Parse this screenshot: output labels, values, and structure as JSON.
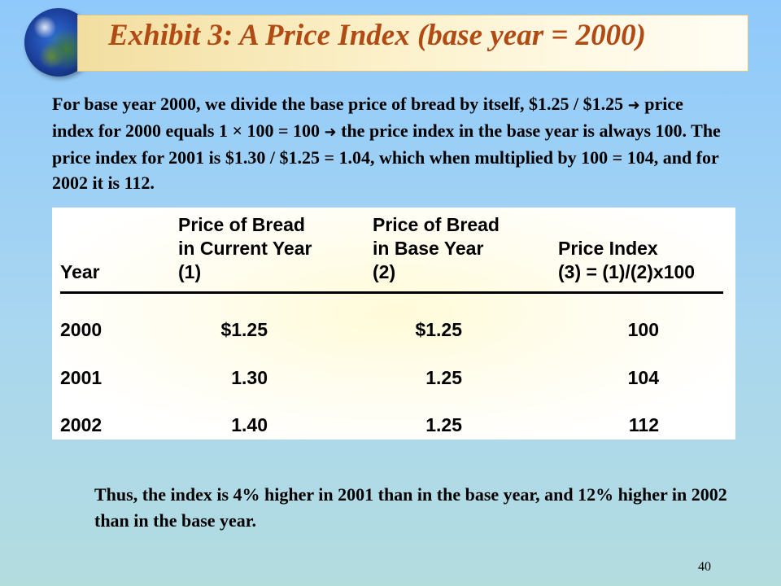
{
  "slide": {
    "title": "Exhibit 3: A Price Index (base year = 2000)",
    "intro": {
      "part1": "For base year 2000, we divide the base price of bread by itself, $1.25 / $1.25 ",
      "part2": " price index for 2000 equals 1 × 100 = 100 ",
      "part3": " the price index in the base year is always 100.  The price index for 2001 is $1.30 / $1.25 = 1.04, which when multiplied by 100 = 104, and for 2002 it is 112."
    },
    "footer": "Thus, the index is 4% higher in 2001 than in the base year, and  12% higher in 2002 than in the base year.",
    "page_number": "40",
    "icons": {
      "globe": "globe-icon",
      "arrow": "right-arrow-icon"
    },
    "colors": {
      "title": "#b24a14",
      "title_bar": "#f8e9b5",
      "background": "#a9d6f0"
    }
  },
  "table": {
    "headers": {
      "year": [
        "",
        "",
        "Year"
      ],
      "current": [
        "Price of Bread",
        "in Current Year",
        "(1)"
      ],
      "base": [
        "Price of Bread",
        "in Base Year",
        "(2)"
      ],
      "index": [
        "",
        "Price Index",
        "(3) = (1)/(2)x100"
      ]
    },
    "rows": [
      {
        "year": "2000",
        "current": "$1.25",
        "base": "$1.25",
        "index": "100"
      },
      {
        "year": "2001",
        "current": "1.30",
        "base": "1.25",
        "index": "104"
      },
      {
        "year": "2002",
        "current": "1.40",
        "base": "1.25",
        "index": "112"
      }
    ]
  }
}
